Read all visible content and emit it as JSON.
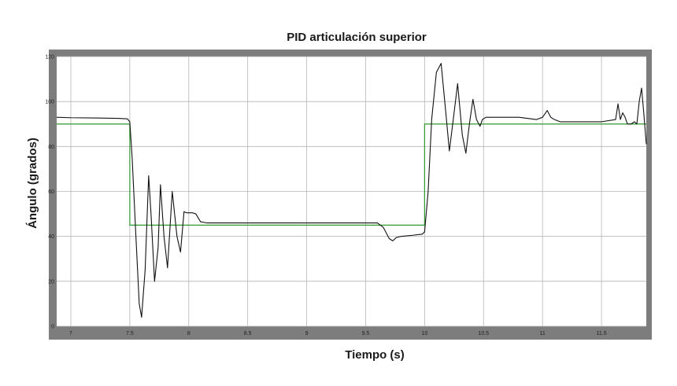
{
  "chart_data": {
    "type": "line",
    "title": "PID articulación superior",
    "xlabel": "Tiempo (s)",
    "ylabel": "Ángulo (grados)",
    "xlim": [
      6.88,
      11.88
    ],
    "ylim": [
      0,
      120
    ],
    "x_ticks": [
      7,
      7.5,
      8,
      8.5,
      9,
      9.5,
      10,
      10.5,
      11,
      11.5
    ],
    "x_tick_labels": [
      "7",
      "7.5",
      "8",
      "8.5",
      "9",
      "9.5",
      "10",
      "10.5",
      "11",
      "11.5"
    ],
    "y_ticks": [
      0,
      20,
      40,
      60,
      80,
      100,
      120
    ],
    "y_tick_labels": [
      "0",
      "20",
      "40",
      "60",
      "80",
      "100",
      "120"
    ],
    "grid": true,
    "colors": {
      "response": "#111111",
      "reference": "#2f9a2f",
      "frame": "#7d7d7d",
      "plot_bg": "#ffffff",
      "grid": "#b5b5b5"
    },
    "series": [
      {
        "key": "reference",
        "x": [
          6.88,
          7.5,
          7.5,
          10.0,
          10.0,
          11.88
        ],
        "y": [
          90,
          90,
          45,
          45,
          90,
          90
        ]
      },
      {
        "key": "response",
        "x": [
          6.88,
          7.0,
          7.2,
          7.4,
          7.48,
          7.5,
          7.52,
          7.55,
          7.58,
          7.6,
          7.63,
          7.66,
          7.68,
          7.71,
          7.74,
          7.76,
          7.79,
          7.82,
          7.86,
          7.9,
          7.93,
          7.96,
          7.98,
          8.0,
          8.03,
          8.06,
          8.1,
          8.15,
          8.2,
          8.25,
          8.4,
          8.6,
          9.0,
          9.4,
          9.6,
          9.65,
          9.7,
          9.73,
          9.76,
          9.8,
          9.9,
          9.98,
          10.0,
          10.03,
          10.06,
          10.1,
          10.14,
          10.18,
          10.21,
          10.25,
          10.28,
          10.32,
          10.35,
          10.38,
          10.41,
          10.44,
          10.47,
          10.49,
          10.52,
          10.55,
          10.6,
          10.8,
          10.95,
          11.0,
          11.04,
          11.07,
          11.1,
          11.15,
          11.2,
          11.3,
          11.5,
          11.62,
          11.64,
          11.66,
          11.68,
          11.7,
          11.72,
          11.75,
          11.78,
          11.8,
          11.82,
          11.84,
          11.86,
          11.88
        ],
        "y": [
          93,
          92.8,
          92.7,
          92.5,
          92.3,
          91,
          75,
          42,
          10,
          4,
          25,
          67,
          50,
          20,
          35,
          63,
          40,
          26,
          60,
          40,
          33,
          51,
          50.5,
          50.5,
          50.5,
          50,
          46.5,
          46,
          46,
          46,
          46,
          46,
          46,
          46,
          46,
          44,
          39,
          38,
          39.5,
          40,
          40.5,
          41,
          42,
          60,
          92,
          113,
          117,
          95,
          78,
          95,
          108,
          85,
          77,
          90,
          101,
          92,
          89,
          92,
          93,
          93,
          93,
          93,
          92,
          93,
          96,
          93,
          92,
          91,
          91,
          91,
          91,
          92,
          99,
          92,
          95,
          93,
          90,
          90,
          91,
          90,
          100,
          106,
          94,
          81
        ]
      }
    ]
  }
}
